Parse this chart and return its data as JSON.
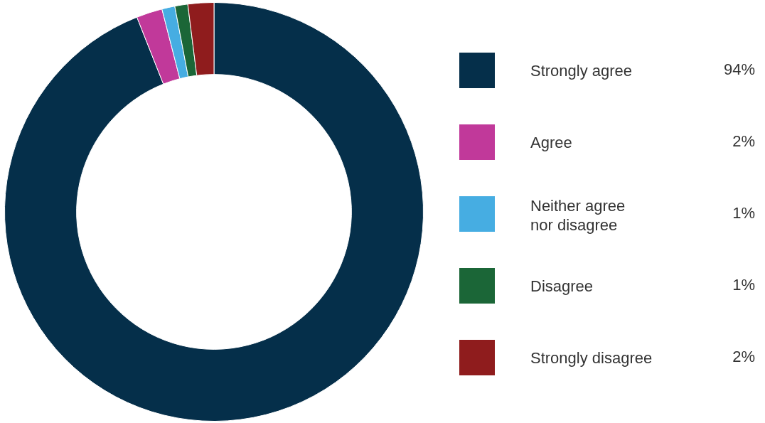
{
  "chart_data": {
    "type": "donut",
    "categories": [
      "Strongly agree",
      "Agree",
      "Neither agree nor disagree",
      "Disagree",
      "Strongly disagree"
    ],
    "values": [
      94,
      2,
      1,
      1,
      2
    ],
    "value_labels": [
      "94%",
      "2%",
      "1%",
      "1%",
      "2%"
    ],
    "colors": [
      "#052f4a",
      "#c1399a",
      "#46ade2",
      "#1b6637",
      "#8f1c1d"
    ],
    "legend": "right"
  }
}
